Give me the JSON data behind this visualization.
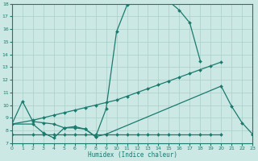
{
  "line1_x": [
    0,
    1,
    2,
    3,
    4,
    5,
    6,
    7,
    8,
    9,
    10,
    11,
    12,
    13,
    14,
    15,
    16,
    17,
    18
  ],
  "line1_y": [
    8.5,
    10.3,
    8.7,
    8.6,
    8.5,
    8.2,
    8.2,
    8.1,
    7.5,
    9.7,
    15.8,
    17.9,
    18.5,
    18.3,
    18.1,
    18.2,
    17.5,
    16.5,
    13.5
  ],
  "line2_x": [
    0,
    2,
    3,
    4,
    5,
    6,
    7,
    8,
    9,
    10,
    11,
    12,
    13,
    14,
    15,
    16,
    17,
    18,
    19,
    20,
    21,
    22,
    23
  ],
  "line2_y": [
    8.5,
    8.8,
    9.0,
    9.2,
    9.4,
    9.6,
    9.8,
    10.0,
    10.2,
    10.4,
    10.7,
    11.0,
    11.3,
    11.6,
    11.9,
    12.2,
    12.5,
    12.8,
    13.1,
    13.4,
    null,
    null,
    null
  ],
  "line3_x": [
    0,
    2,
    3,
    4,
    5,
    6,
    7,
    8,
    9,
    20,
    21,
    22,
    23
  ],
  "line3_y": [
    8.5,
    8.5,
    7.8,
    7.4,
    8.2,
    8.3,
    8.1,
    7.5,
    7.7,
    11.5,
    9.9,
    8.6,
    7.7
  ],
  "line4_x": [
    0,
    2,
    3,
    4,
    5,
    6,
    7,
    8,
    9,
    10,
    11,
    12,
    13,
    14,
    15,
    16,
    17,
    18,
    19,
    20,
    21,
    22,
    23
  ],
  "line4_y": [
    7.7,
    7.7,
    7.7,
    7.7,
    7.7,
    7.7,
    7.7,
    7.7,
    7.7,
    7.7,
    7.7,
    7.7,
    7.7,
    7.7,
    7.7,
    7.7,
    7.7,
    7.7,
    7.7,
    7.7,
    null,
    null,
    7.7
  ],
  "xlim": [
    0,
    23
  ],
  "ylim": [
    7,
    18
  ],
  "yticks": [
    7,
    8,
    9,
    10,
    11,
    12,
    13,
    14,
    15,
    16,
    17,
    18
  ],
  "xticks": [
    0,
    1,
    2,
    3,
    4,
    5,
    6,
    7,
    8,
    9,
    10,
    11,
    12,
    13,
    14,
    15,
    16,
    17,
    18,
    19,
    20,
    21,
    22,
    23
  ],
  "xlabel": "Humidex (Indice chaleur)",
  "line_color": "#1a7a6e",
  "bg_color": "#cce8e4",
  "grid_color": "#aacfca",
  "marker": "D",
  "marker_size": 2.0,
  "line_width": 0.9
}
